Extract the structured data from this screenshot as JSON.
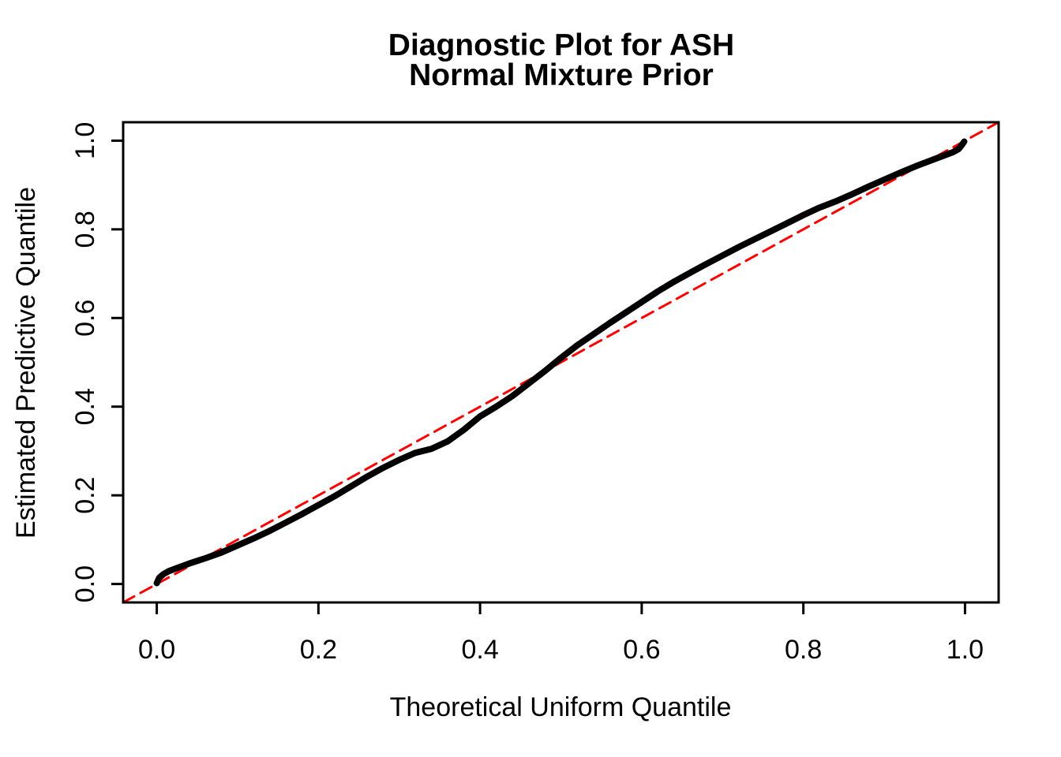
{
  "figure": {
    "background_color": "#FFFFFF",
    "foreground_color": "#000000"
  },
  "chart_data": {
    "type": "line",
    "title": "Diagnostic Plot for ASH\nNormal Mixture Prior",
    "title_line1": "Diagnostic Plot for ASH",
    "title_line2": "Normal Mixture Prior",
    "xlabel": "Theoretical Uniform Quantile",
    "ylabel": "Estimated Predictive Quantile",
    "xlim": [
      -0.0416,
      1.0416
    ],
    "ylim": [
      -0.0416,
      1.0416
    ],
    "x_ticks": [
      0.0,
      0.2,
      0.4,
      0.6,
      0.8,
      1.0
    ],
    "y_ticks": [
      0.0,
      0.2,
      0.4,
      0.6,
      0.8,
      1.0
    ],
    "x_tick_labels": [
      "0.0",
      "0.2",
      "0.4",
      "0.6",
      "0.8",
      "1.0"
    ],
    "y_tick_labels": [
      "0.0",
      "0.2",
      "0.4",
      "0.6",
      "0.8",
      "1.0"
    ],
    "grid": false,
    "legend": null,
    "series": [
      {
        "name": "estimated-vs-theoretical-quantiles",
        "style": "solid",
        "color": "#000000",
        "linewidth": 8,
        "points": [
          [
            0.0,
            0.002
          ],
          [
            0.003,
            0.014
          ],
          [
            0.008,
            0.022
          ],
          [
            0.015,
            0.029
          ],
          [
            0.025,
            0.036
          ],
          [
            0.04,
            0.046
          ],
          [
            0.06,
            0.058
          ],
          [
            0.08,
            0.071
          ],
          [
            0.1,
            0.087
          ],
          [
            0.12,
            0.103
          ],
          [
            0.14,
            0.12
          ],
          [
            0.16,
            0.139
          ],
          [
            0.18,
            0.158
          ],
          [
            0.2,
            0.178
          ],
          [
            0.22,
            0.198
          ],
          [
            0.24,
            0.22
          ],
          [
            0.26,
            0.242
          ],
          [
            0.28,
            0.262
          ],
          [
            0.3,
            0.28
          ],
          [
            0.32,
            0.296
          ],
          [
            0.34,
            0.305
          ],
          [
            0.36,
            0.322
          ],
          [
            0.38,
            0.348
          ],
          [
            0.4,
            0.378
          ],
          [
            0.42,
            0.4
          ],
          [
            0.44,
            0.424
          ],
          [
            0.46,
            0.452
          ],
          [
            0.48,
            0.48
          ],
          [
            0.5,
            0.51
          ],
          [
            0.52,
            0.538
          ],
          [
            0.54,
            0.563
          ],
          [
            0.56,
            0.588
          ],
          [
            0.58,
            0.612
          ],
          [
            0.6,
            0.636
          ],
          [
            0.62,
            0.66
          ],
          [
            0.64,
            0.682
          ],
          [
            0.66,
            0.702
          ],
          [
            0.68,
            0.722
          ],
          [
            0.7,
            0.741
          ],
          [
            0.72,
            0.76
          ],
          [
            0.74,
            0.778
          ],
          [
            0.76,
            0.796
          ],
          [
            0.78,
            0.814
          ],
          [
            0.8,
            0.832
          ],
          [
            0.82,
            0.849
          ],
          [
            0.84,
            0.863
          ],
          [
            0.86,
            0.879
          ],
          [
            0.88,
            0.896
          ],
          [
            0.9,
            0.912
          ],
          [
            0.92,
            0.928
          ],
          [
            0.94,
            0.943
          ],
          [
            0.96,
            0.957
          ],
          [
            0.975,
            0.967
          ],
          [
            0.985,
            0.974
          ],
          [
            0.992,
            0.981
          ],
          [
            0.996,
            0.99
          ],
          [
            0.999,
            0.998
          ]
        ]
      },
      {
        "name": "reference-line-y-equals-x",
        "style": "dashed",
        "color": "#FF0000",
        "linewidth": 3,
        "points": [
          [
            -0.0416,
            -0.0416
          ],
          [
            1.0416,
            1.0416
          ]
        ]
      }
    ]
  }
}
